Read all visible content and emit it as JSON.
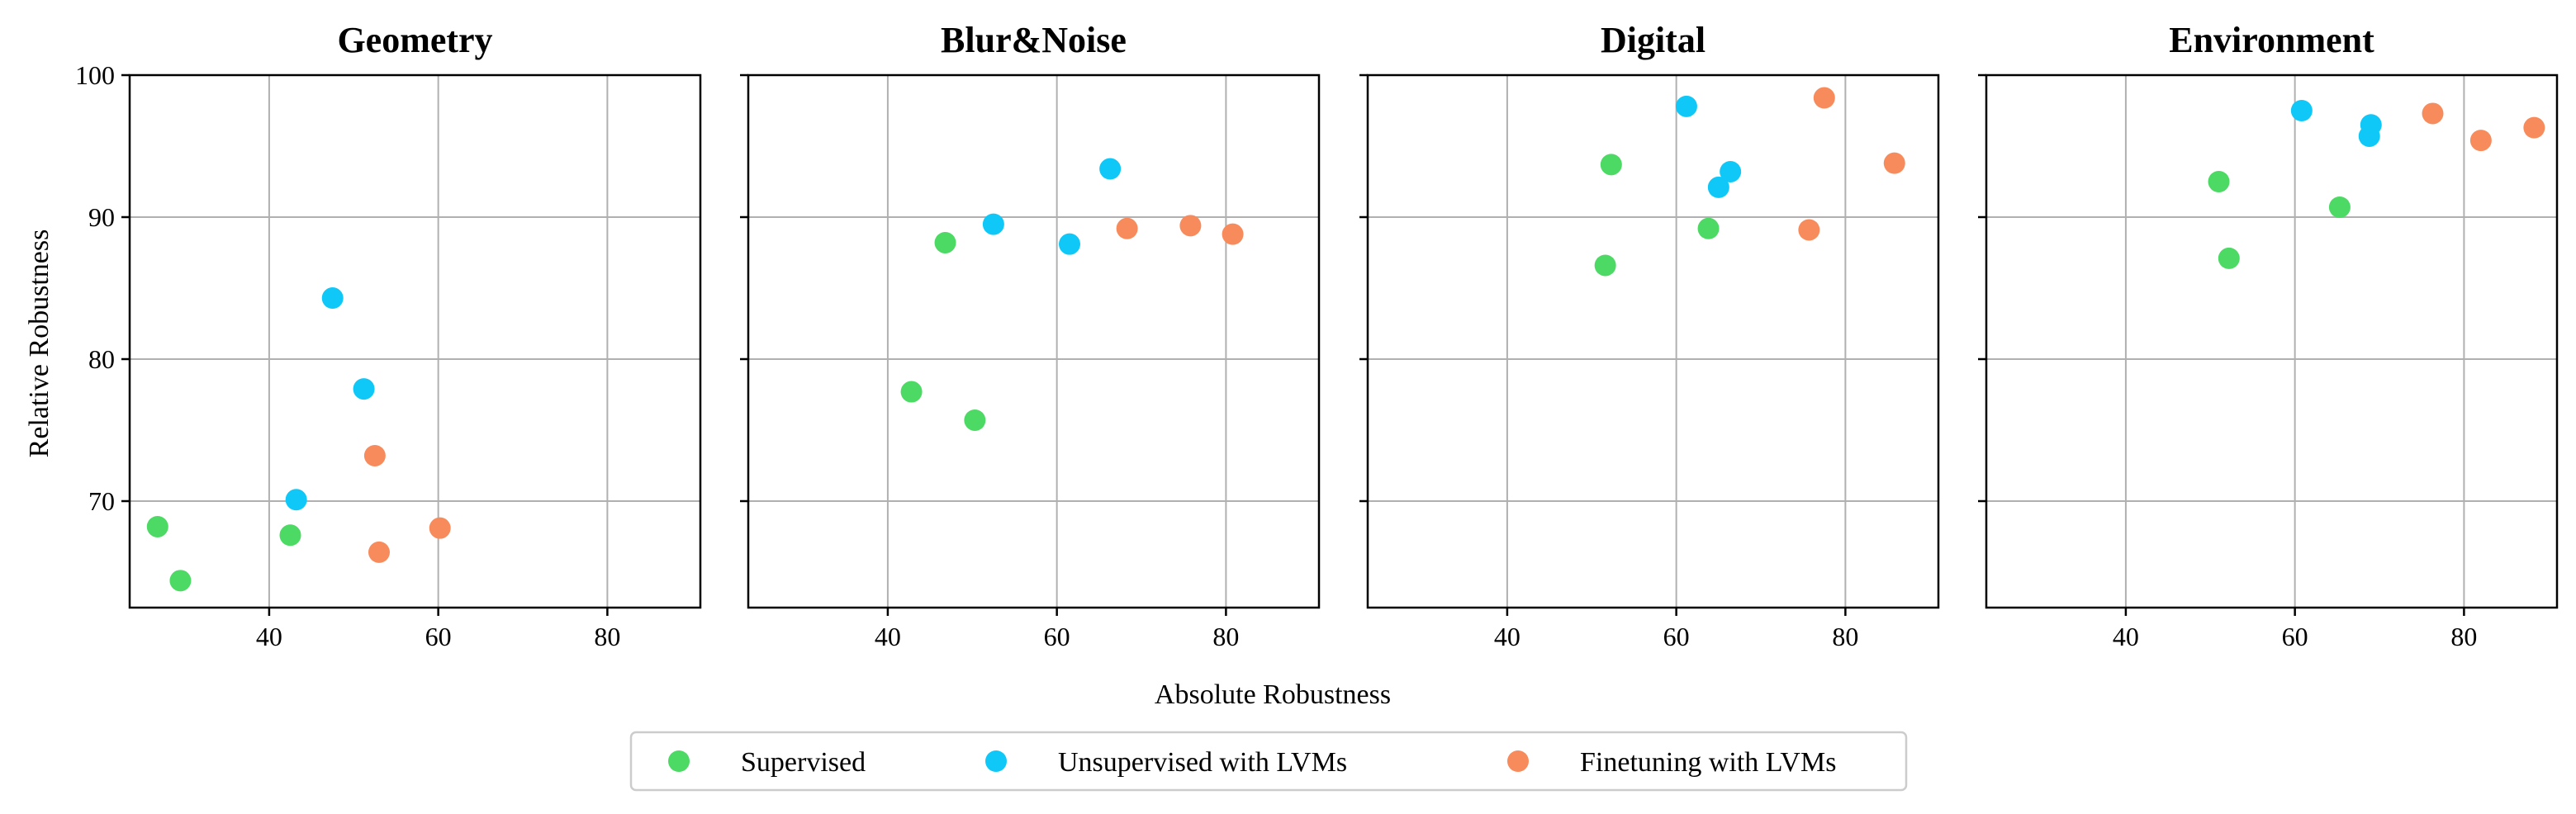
{
  "chart_data": {
    "type": "scatter",
    "xlabel": "Absolute Robustness",
    "ylabel": "Relative Robustness",
    "xlim": [
      23.5,
      91
    ],
    "ylim": [
      62.5,
      100
    ],
    "xticks": [
      40,
      60,
      80
    ],
    "yticks": [
      70,
      80,
      90,
      100
    ],
    "grid": true,
    "shared_y": true,
    "legend_position": "bottom-center",
    "legend": [
      {
        "name": "Supervised",
        "color": "#4cd964"
      },
      {
        "name": "Unsupervised with LVMs",
        "color": "#0fc8f7"
      },
      {
        "name": "Finetuning with LVMs",
        "color": "#f88b5c"
      }
    ],
    "panels": [
      {
        "title": "Geometry",
        "series": [
          {
            "name": "Supervised",
            "points": [
              [
                26.8,
                68.2
              ],
              [
                29.5,
                64.4
              ],
              [
                42.5,
                67.6
              ]
            ]
          },
          {
            "name": "Unsupervised with LVMs",
            "points": [
              [
                47.5,
                84.3
              ],
              [
                51.2,
                77.9
              ],
              [
                43.2,
                70.1
              ]
            ]
          },
          {
            "name": "Finetuning with LVMs",
            "points": [
              [
                52.5,
                73.2
              ],
              [
                53.0,
                66.4
              ],
              [
                60.2,
                68.1
              ]
            ]
          }
        ]
      },
      {
        "title": "Blur&Noise",
        "series": [
          {
            "name": "Supervised",
            "points": [
              [
                46.8,
                88.2
              ],
              [
                42.8,
                77.7
              ],
              [
                50.3,
                75.7
              ]
            ]
          },
          {
            "name": "Unsupervised with LVMs",
            "points": [
              [
                52.5,
                89.5
              ],
              [
                61.5,
                88.1
              ],
              [
                66.3,
                93.4
              ]
            ]
          },
          {
            "name": "Finetuning with LVMs",
            "points": [
              [
                68.3,
                89.2
              ],
              [
                75.8,
                89.4
              ],
              [
                80.8,
                88.8
              ]
            ]
          }
        ]
      },
      {
        "title": "Digital",
        "series": [
          {
            "name": "Supervised",
            "points": [
              [
                52.3,
                93.7
              ],
              [
                51.6,
                86.6
              ],
              [
                63.8,
                89.2
              ]
            ]
          },
          {
            "name": "Unsupervised with LVMs",
            "points": [
              [
                61.2,
                97.8
              ],
              [
                65.0,
                92.1
              ],
              [
                66.4,
                93.2
              ]
            ]
          },
          {
            "name": "Finetuning with LVMs",
            "points": [
              [
                77.5,
                98.4
              ],
              [
                85.8,
                93.8
              ],
              [
                75.7,
                89.1
              ]
            ]
          }
        ]
      },
      {
        "title": "Environment",
        "series": [
          {
            "name": "Supervised",
            "points": [
              [
                51.0,
                92.5
              ],
              [
                52.2,
                87.1
              ],
              [
                65.3,
                90.7
              ]
            ]
          },
          {
            "name": "Unsupervised with LVMs",
            "points": [
              [
                60.8,
                97.5
              ],
              [
                69.0,
                96.5
              ],
              [
                68.8,
                95.7
              ]
            ]
          },
          {
            "name": "Finetuning with LVMs",
            "points": [
              [
                76.3,
                97.3
              ],
              [
                82.0,
                95.4
              ],
              [
                88.3,
                96.3
              ]
            ]
          }
        ]
      }
    ]
  }
}
